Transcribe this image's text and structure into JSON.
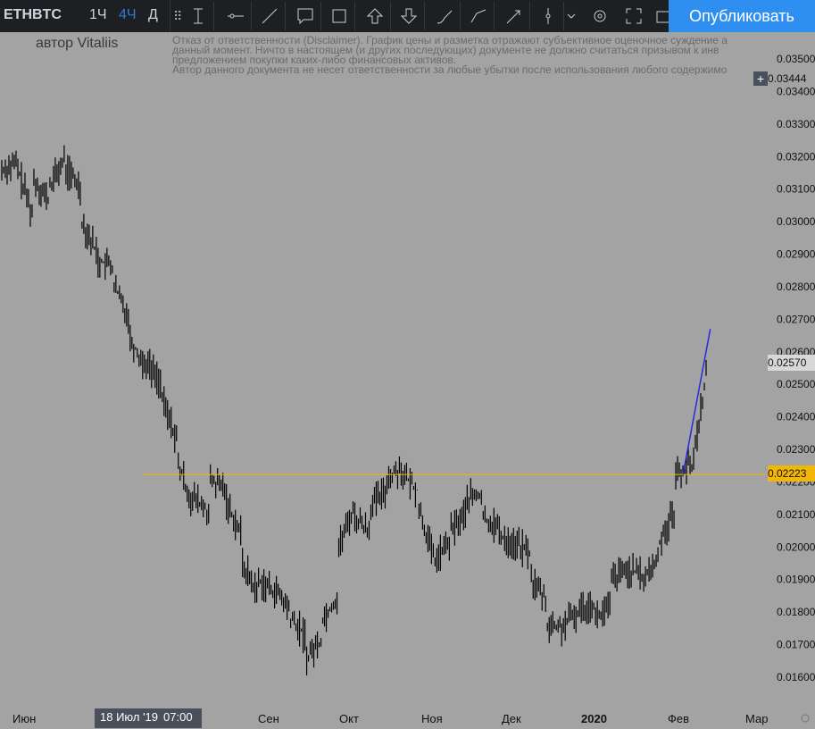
{
  "header": {
    "symbol": "ETHBTC",
    "timeframes": [
      "1Ч",
      "4Ч",
      "Д"
    ],
    "active_timeframe": "4Ч",
    "publish_label": "Опубликовать",
    "tools": [
      "text-cursor-icon",
      "horizontal-line-icon",
      "trend-line-icon",
      "comment-icon",
      "rectangle-icon",
      "arrow-up-icon",
      "arrow-down-icon",
      "brush-icon",
      "path-icon",
      "arrow-line-icon",
      "vertical-line-icon",
      "chevron-down-icon",
      "gear-icon",
      "fullscreen-icon",
      "camera-icon"
    ]
  },
  "author": "автор Vitaliis",
  "disclaimer": "Отказ от ответственности (Disclaimer). График цены и разметка отражают субъективное оценочное суждение а\nданный момент. Ничто в настоящем (и других последующих) документе не должно считаться призывом к инв\nпредложением покупки каких-либо финансовых активов.\nАвтор данного документа не несет ответственности за любые убытки после использования любого содержимо",
  "crosshair": {
    "date": "18 Июл '19",
    "time": "07:00"
  },
  "price_tags": {
    "top": "0.03444",
    "current": "0.02570",
    "level": "0.02223"
  },
  "colors": {
    "background": "#a3a3a3",
    "candles": "#000000",
    "level_line": "#f2b705",
    "trend_line": "#2a2ad8",
    "publish": "#2f8ff0",
    "toolbar": "#1e1f23"
  },
  "chart_data": {
    "type": "line",
    "symbol": "ETHBTC",
    "x_labels": [
      "Июн",
      "Сен",
      "Окт",
      "Ноя",
      "Дек",
      "2020",
      "Фев",
      "Мар"
    ],
    "y_ticks": [
      0.035,
      0.034,
      0.033,
      0.032,
      0.031,
      0.03,
      0.029,
      0.028,
      0.027,
      0.026,
      0.025,
      0.024,
      0.023,
      0.022,
      0.021,
      0.02,
      0.019,
      0.018,
      0.017,
      0.016
    ],
    "y_tick_labels": [
      "0.03500",
      "0.03400",
      "0.03300",
      "0.03200",
      "0.03100",
      "0.03000",
      "0.02900",
      "0.02800",
      "0.02700",
      "0.02600",
      "0.02500",
      "0.02400",
      "0.02300",
      "0.02200",
      "0.02100",
      "0.02000",
      "0.01900",
      "0.01800",
      "0.01700",
      "0.01600"
    ],
    "ylim": [
      0.0156,
      0.0355
    ],
    "price_path": [
      [
        0.0316,
        0.0318
      ],
      [
        0.0316,
        0.0301
      ],
      [
        0.0313,
        0.0306
      ],
      [
        0.0311,
        0.032
      ],
      [
        0.0316,
        0.031
      ],
      [
        0.03,
        0.029
      ],
      [
        0.0288,
        0.0286
      ],
      [
        0.028,
        0.027
      ],
      [
        0.0264,
        0.0255
      ],
      [
        0.0257,
        0.025
      ],
      [
        0.0245,
        0.0232
      ],
      [
        0.0225,
        0.0212
      ],
      [
        0.0215,
        0.021
      ],
      [
        0.022,
        0.0218
      ],
      [
        0.0214,
        0.0203
      ],
      [
        0.0195,
        0.0185
      ],
      [
        0.019,
        0.0186
      ],
      [
        0.0187,
        0.018
      ],
      [
        0.0178,
        0.0172
      ],
      [
        0.0166,
        0.0172
      ],
      [
        0.0178,
        0.0185
      ],
      [
        0.02,
        0.0213
      ],
      [
        0.0209,
        0.0205
      ],
      [
        0.0213,
        0.0217
      ],
      [
        0.0221,
        0.0225
      ],
      [
        0.0222,
        0.0217
      ],
      [
        0.0212,
        0.0195
      ],
      [
        0.0196,
        0.0202
      ],
      [
        0.0205,
        0.0211
      ],
      [
        0.0215,
        0.0216
      ],
      [
        0.0209,
        0.0206
      ],
      [
        0.0204,
        0.02
      ],
      [
        0.0201,
        0.0198
      ],
      [
        0.019,
        0.0183
      ],
      [
        0.0176,
        0.0175
      ],
      [
        0.0176,
        0.018
      ],
      [
        0.0181,
        0.0183
      ],
      [
        0.0178,
        0.0182
      ],
      [
        0.019,
        0.0193
      ],
      [
        0.0193,
        0.0191
      ],
      [
        0.019,
        0.0197
      ],
      [
        0.0202,
        0.0212
      ],
      [
        0.0222,
        0.0226
      ],
      [
        0.0224,
        0.0257
      ]
    ],
    "horizontal_level": 0.02223,
    "trend_line": {
      "from": [
        0.9446,
        0.02223
      ],
      "to": [
        0.9704,
        0.0267
      ]
    }
  }
}
